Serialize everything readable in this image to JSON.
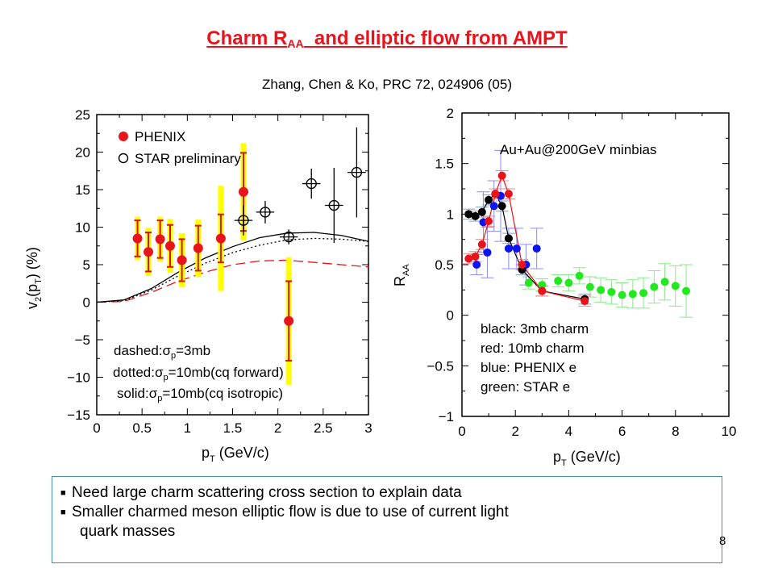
{
  "slide": {
    "title_main": "Charm R",
    "title_sub": "AA",
    "title_rest": "  and elliptic flow from AMPT",
    "subtitle": "Zhang, Chen & Ko, PRC 72, 024906 (05)",
    "bullets": [
      "Need large charm scattering cross section to explain data",
      "Smaller charmed meson elliptic flow is due to use of current light"
    ],
    "bullet_continuation": "quark masses",
    "page_number": "8"
  },
  "colors": {
    "red": "#e8131b",
    "yellow": "#ffff00",
    "blue": "#0b14f5",
    "green": "#21e81f",
    "errblue": "#8a8cf0",
    "errred": "#ef8a8a",
    "errgreen": "#8be88b",
    "border": "#4a8ba6"
  },
  "chart_data": [
    {
      "type": "scatter",
      "xlabel_main": "p",
      "xlabel_sub": "T",
      "xlabel_rest": " (GeV/c)",
      "ylabel": "v2(pT) (%)",
      "xlim": [
        0,
        3
      ],
      "ylim": [
        -15,
        25
      ],
      "xticks": [
        "0",
        "0.5",
        "1",
        "1.5",
        "2",
        "2.5",
        "3"
      ],
      "xtick_values": [
        0,
        0.5,
        1,
        1.5,
        2,
        2.5,
        3
      ],
      "yticks": [
        "25",
        "20",
        "15",
        "10",
        "5",
        "0",
        "−5",
        "−10",
        "−15"
      ],
      "ytick_values": [
        25,
        20,
        15,
        10,
        5,
        0,
        -5,
        -10,
        -15
      ],
      "legend": [
        {
          "name": "PHENIX",
          "marker": "filled-red"
        },
        {
          "name": "STAR preliminary",
          "marker": "open-black"
        }
      ],
      "series": [
        {
          "name": "PHENIX",
          "x": [
            0.45,
            0.57,
            0.7,
            0.81,
            0.94,
            1.12,
            1.37,
            1.62,
            2.12
          ],
          "y": [
            8.5,
            6.7,
            8.4,
            7.5,
            5.6,
            7.2,
            8.5,
            14.7,
            -2.5
          ],
          "stat_err": [
            2.4,
            2.6,
            2.5,
            2.8,
            2.8,
            3.0,
            3.2,
            5.2,
            5.3
          ],
          "sys_err": [
            2.9,
            3.2,
            3.0,
            3.6,
            3.6,
            3.8,
            7.0,
            6.5,
            8.5
          ]
        },
        {
          "name": "STAR preliminary",
          "x": [
            1.62,
            1.86,
            2.12,
            2.37,
            2.62,
            2.87
          ],
          "y": [
            10.9,
            12.0,
            8.7,
            15.8,
            12.9,
            17.3
          ],
          "xerr": 0.1,
          "yerr": [
            2.0,
            1.5,
            1.0,
            2.0,
            5.0,
            6.0
          ]
        }
      ],
      "curves": [
        {
          "style": "dashed",
          "label": "dashed:σp=3mb",
          "x": [
            0,
            0.3,
            0.6,
            0.9,
            1.2,
            1.5,
            1.8,
            2.1,
            2.4,
            2.7,
            3.0
          ],
          "y": [
            0,
            0.1,
            1.3,
            2.8,
            4.0,
            5.0,
            5.5,
            5.6,
            5.3,
            5.0,
            4.7
          ]
        },
        {
          "style": "dotted",
          "label": "dotted:σp=10mb(cq forward)",
          "x": [
            0,
            0.3,
            0.6,
            0.9,
            1.2,
            1.5,
            1.8,
            2.1,
            2.4,
            2.7,
            3.0
          ],
          "y": [
            0,
            0.2,
            1.6,
            3.5,
            5.2,
            6.6,
            7.6,
            8.3,
            8.5,
            8.4,
            8.1
          ]
        },
        {
          "style": "solid",
          "label": "solid:σp=10mb(cq isotropic)",
          "x": [
            0,
            0.3,
            0.6,
            0.9,
            1.2,
            1.5,
            1.8,
            2.1,
            2.4,
            2.7,
            3.0
          ],
          "y": [
            0,
            0.3,
            1.8,
            4.0,
            5.9,
            7.4,
            8.6,
            9.2,
            9.3,
            8.9,
            8.1
          ]
        }
      ],
      "annotations": [
        {
          "prefix": "dashed:",
          "sym": "σ",
          "sub": "p",
          "rest": "=3mb"
        },
        {
          "prefix": "dotted:",
          "sym": "σ",
          "sub": "p",
          "rest": "=10mb(cq forward)"
        },
        {
          "prefix": "solid:",
          "sym": "σ",
          "sub": "p",
          "rest": "=10mb(cq isotropic)"
        }
      ]
    },
    {
      "type": "scatter",
      "xlabel_main": "p",
      "xlabel_sub": "T",
      "xlabel_rest": " (GeV/c)",
      "ylabel": "RAA",
      "xlim": [
        0,
        10
      ],
      "ylim": [
        -1,
        2
      ],
      "xticks": [
        "0",
        "2",
        "4",
        "6",
        "8",
        "10"
      ],
      "xtick_values": [
        0,
        2,
        4,
        6,
        8,
        10
      ],
      "yticks": [
        "2",
        "1.5",
        "1",
        "0.5",
        "0",
        "−0.5",
        "−1"
      ],
      "ytick_values": [
        2,
        1.5,
        1,
        0.5,
        0,
        -0.5,
        -1
      ],
      "annotation_top": "Au+Au@200GeV minbias",
      "legend_text": [
        "black: 3mb charm",
        "red: 10mb charm",
        "blue: PHENIX e",
        "green: STAR e"
      ],
      "series": [
        {
          "name": "black",
          "connected": true,
          "x": [
            0.25,
            0.5,
            0.75,
            1.0,
            1.25,
            1.5,
            1.75,
            2.25,
            3.0,
            4.6
          ],
          "y": [
            1.0,
            0.98,
            1.02,
            1.14,
            1.2,
            1.08,
            0.76,
            0.45,
            0.24,
            0.16
          ],
          "yerr": 0.05
        },
        {
          "name": "red",
          "connected": true,
          "x": [
            0.25,
            0.5,
            0.75,
            1.0,
            1.25,
            1.5,
            1.75,
            2.25,
            3.0,
            4.6
          ],
          "y": [
            0.56,
            0.58,
            0.7,
            0.93,
            1.2,
            1.38,
            1.2,
            0.5,
            0.24,
            0.14
          ],
          "yerr": 0.05
        },
        {
          "name": "blue",
          "connected": false,
          "x": [
            0.55,
            0.8,
            0.95,
            1.2,
            1.45,
            1.75,
            2.05,
            2.4,
            2.8
          ],
          "y": [
            0.5,
            0.92,
            0.62,
            1.08,
            1.18,
            0.66,
            0.66,
            0.5,
            0.66
          ],
          "yerr": [
            0.1,
            0.3,
            0.25,
            0.25,
            0.45,
            0.2,
            0.2,
            0.2,
            0.2
          ]
        },
        {
          "name": "green",
          "connected": false,
          "x": [
            2.5,
            3.0,
            3.6,
            4.0,
            4.4,
            4.8,
            5.2,
            5.6,
            6.0,
            6.4,
            6.8,
            7.2,
            7.6,
            8.0,
            8.4
          ],
          "y": [
            0.32,
            0.3,
            0.34,
            0.32,
            0.39,
            0.28,
            0.25,
            0.23,
            0.2,
            0.21,
            0.22,
            0.28,
            0.33,
            0.29,
            0.24
          ],
          "yerr": [
            0.06,
            0.06,
            0.06,
            0.08,
            0.08,
            0.1,
            0.12,
            0.12,
            0.12,
            0.14,
            0.15,
            0.16,
            0.18,
            0.2,
            0.26
          ]
        }
      ]
    }
  ]
}
